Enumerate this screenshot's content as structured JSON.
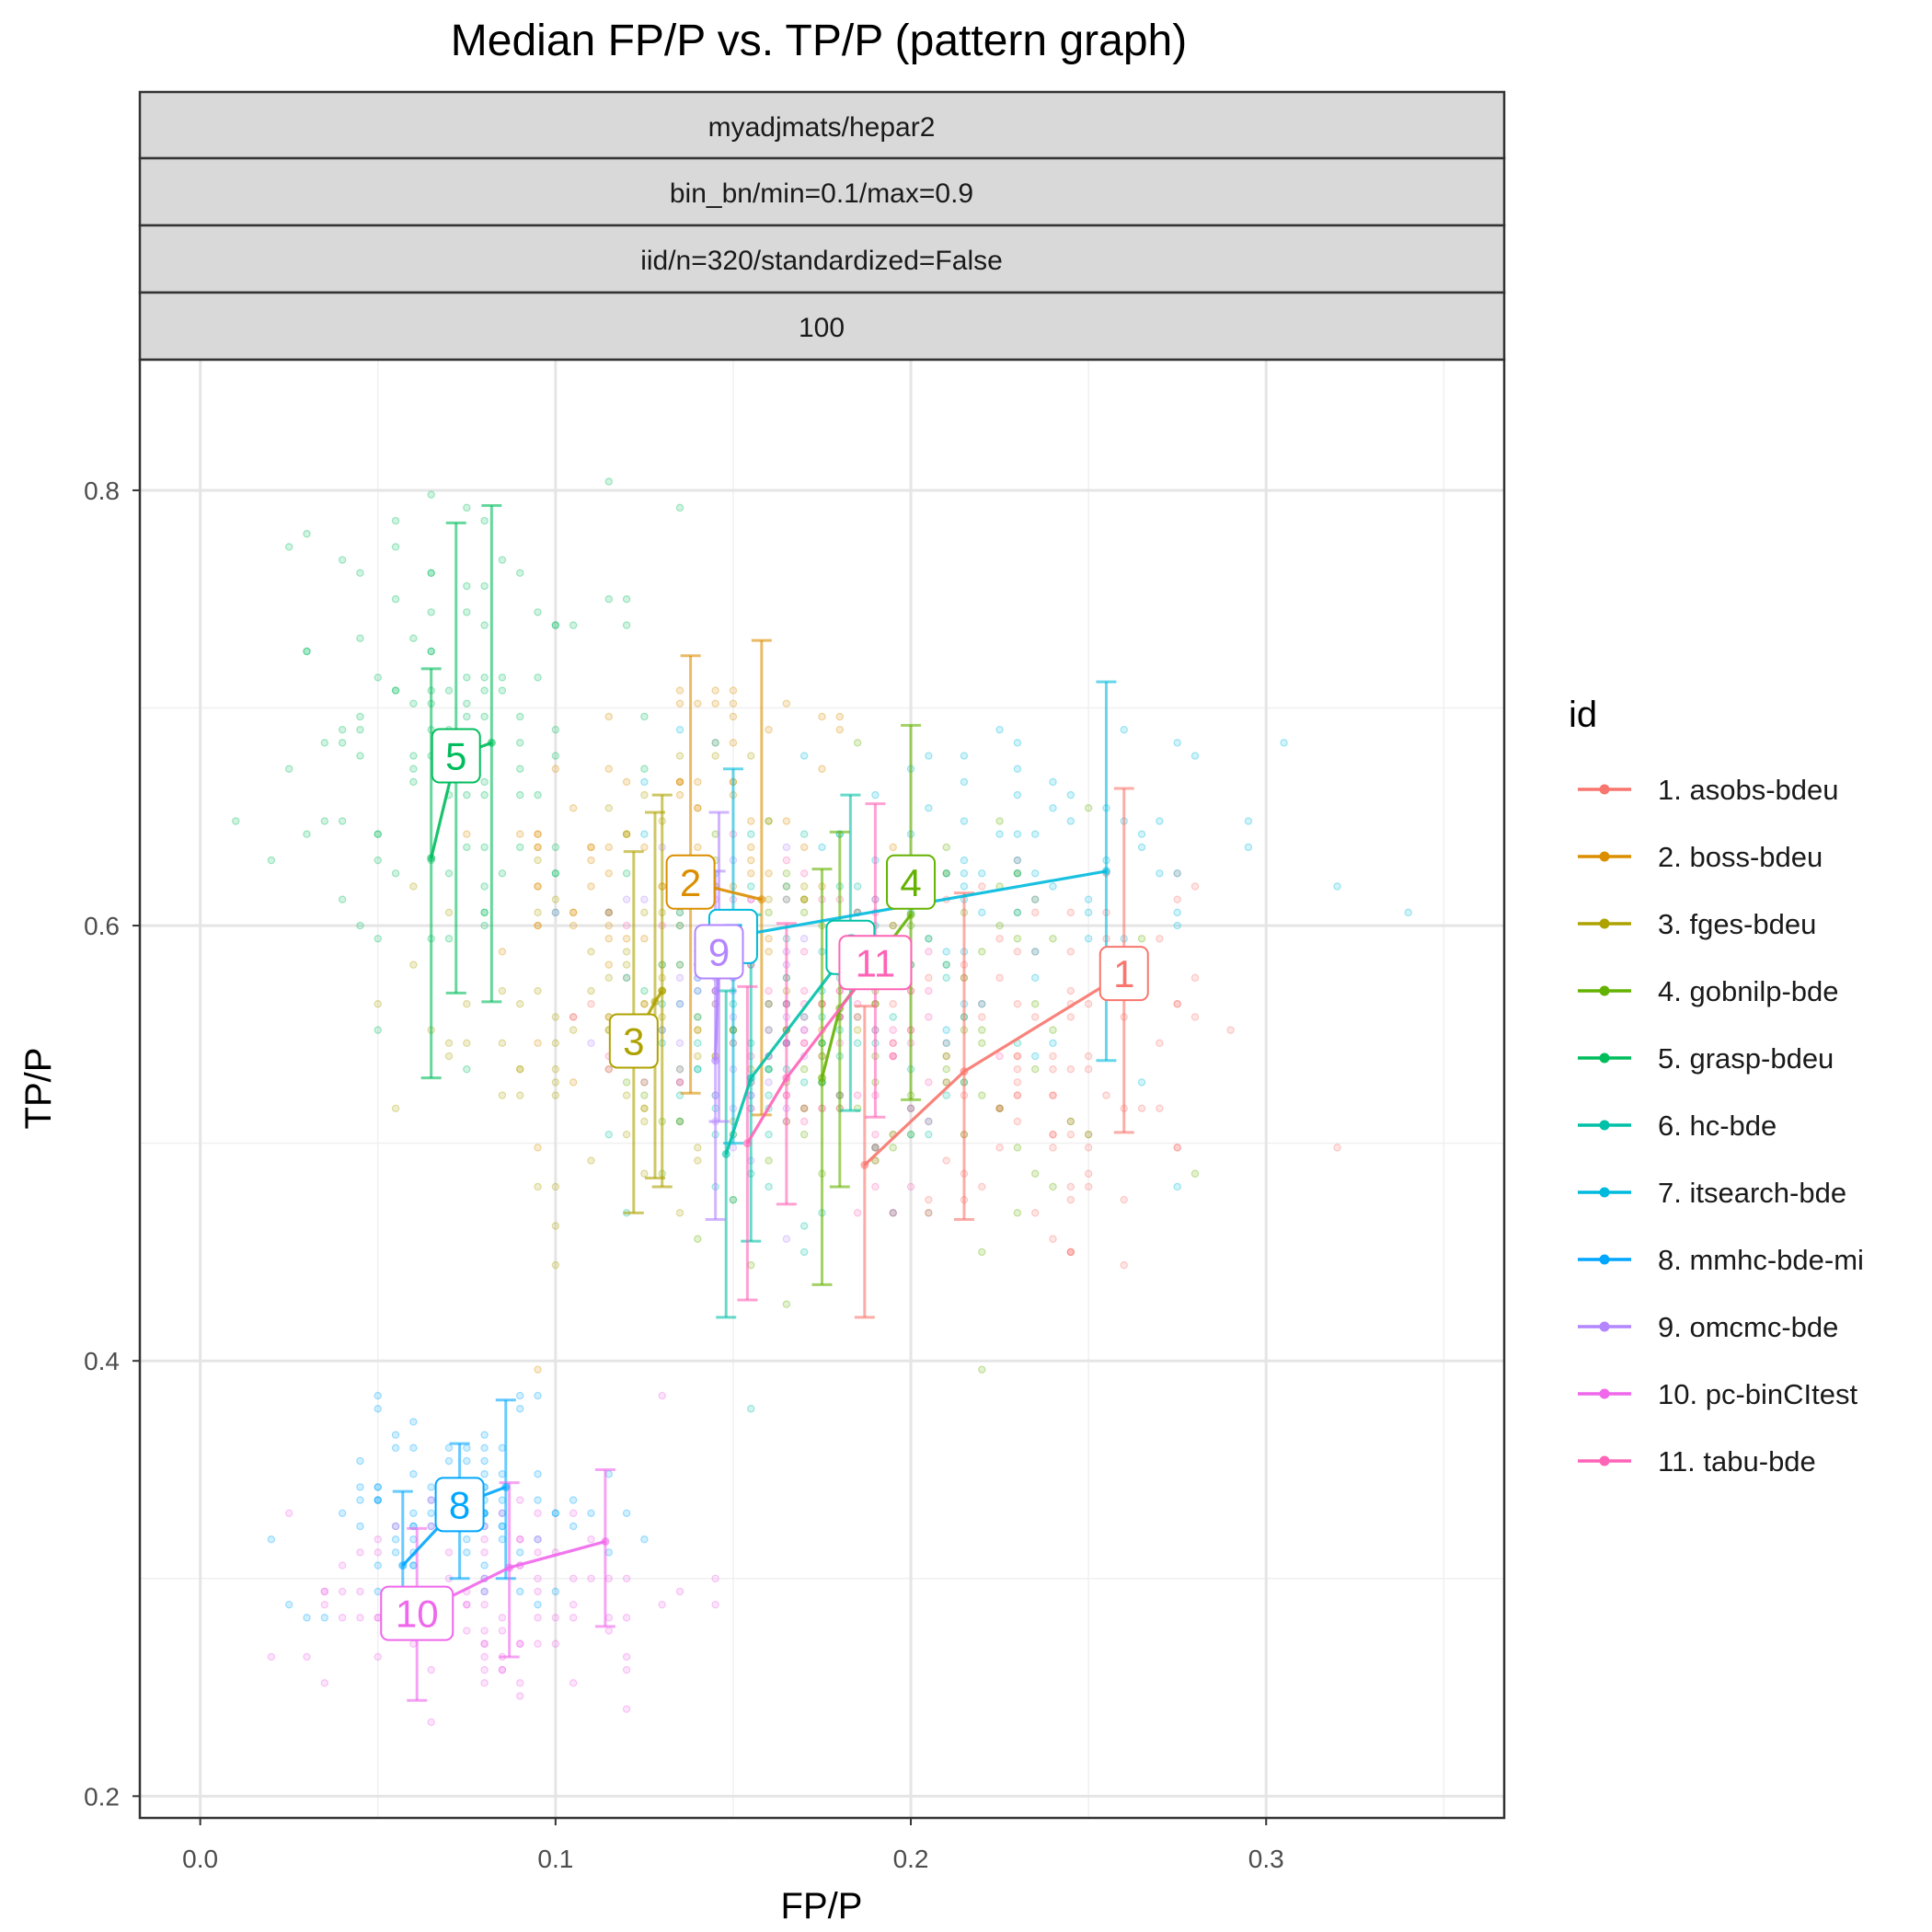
{
  "chart_data": {
    "type": "line",
    "title": "Median FP/P vs. TP/P (pattern graph)",
    "xlabel": "FP/P",
    "ylabel": "TP/P",
    "xlim": [
      -0.017,
      0.367
    ],
    "ylim": [
      0.19,
      0.86
    ],
    "x_ticks": [
      0.0,
      0.1,
      0.2,
      0.3
    ],
    "x_tick_labels": [
      "0.0",
      "0.1",
      "0.2",
      "0.3"
    ],
    "y_ticks": [
      0.2,
      0.4,
      0.6,
      0.8
    ],
    "y_tick_labels": [
      "0.2",
      "0.4",
      "0.6",
      "0.8"
    ],
    "grid": true,
    "facet_strips": [
      "myadjmats/hepar2",
      "bin_bn/min=0.1/max=0.9",
      "iid/n=320/standardized=False",
      "100"
    ],
    "legend": {
      "title": "id",
      "position": "right"
    },
    "series": [
      {
        "name": "1. asobs-bdeu",
        "color": "#F8766D",
        "label": "1",
        "label_at": [
          0.26,
          0.578
        ],
        "points": [
          {
            "x": 0.187,
            "y": 0.49,
            "ylo": 0.42,
            "yhi": 0.563
          },
          {
            "x": 0.215,
            "y": 0.533,
            "ylo": 0.465,
            "yhi": 0.615
          },
          {
            "x": 0.26,
            "y": 0.578,
            "ylo": 0.505,
            "yhi": 0.663
          }
        ],
        "cloud": {
          "cx": 0.235,
          "cy": 0.54,
          "sx": 0.035,
          "sy": 0.06,
          "n": 110
        }
      },
      {
        "name": "2. boss-bdeu",
        "color": "#DB8E00",
        "label": "2",
        "label_at": [
          0.138,
          0.62
        ],
        "points": [
          {
            "x": 0.138,
            "y": 0.62,
            "ylo": 0.523,
            "yhi": 0.724
          },
          {
            "x": 0.158,
            "y": 0.612,
            "ylo": 0.513,
            "yhi": 0.731
          }
        ],
        "cloud": {
          "cx": 0.135,
          "cy": 0.625,
          "sx": 0.03,
          "sy": 0.06,
          "n": 110
        }
      },
      {
        "name": "3. fges-bdeu",
        "color": "#AEA200",
        "label": "3",
        "label_at": [
          0.122,
          0.547
        ],
        "points": [
          {
            "x": 0.122,
            "y": 0.547,
            "ylo": 0.468,
            "yhi": 0.634
          },
          {
            "x": 0.128,
            "y": 0.565,
            "ylo": 0.484,
            "yhi": 0.652
          },
          {
            "x": 0.13,
            "y": 0.57,
            "ylo": 0.48,
            "yhi": 0.66
          }
        ],
        "cloud": {
          "cx": 0.12,
          "cy": 0.56,
          "sx": 0.03,
          "sy": 0.055,
          "n": 100
        }
      },
      {
        "name": "4. gobnilp-bde",
        "color": "#64B200",
        "label": "4",
        "label_at": [
          0.2,
          0.62
        ],
        "points": [
          {
            "x": 0.175,
            "y": 0.53,
            "ylo": 0.435,
            "yhi": 0.626
          },
          {
            "x": 0.18,
            "y": 0.562,
            "ylo": 0.48,
            "yhi": 0.643
          },
          {
            "x": 0.2,
            "y": 0.605,
            "ylo": 0.52,
            "yhi": 0.692
          }
        ],
        "cloud": {
          "cx": 0.19,
          "cy": 0.55,
          "sx": 0.035,
          "sy": 0.06,
          "n": 110
        }
      },
      {
        "name": "5. grasp-bdeu",
        "color": "#00BD5C",
        "label": "5",
        "label_at": [
          0.072,
          0.678
        ],
        "points": [
          {
            "x": 0.065,
            "y": 0.631,
            "ylo": 0.53,
            "yhi": 0.718
          },
          {
            "x": 0.072,
            "y": 0.678,
            "ylo": 0.569,
            "yhi": 0.785
          },
          {
            "x": 0.082,
            "y": 0.684,
            "ylo": 0.565,
            "yhi": 0.793
          }
        ],
        "cloud": {
          "cx": 0.075,
          "cy": 0.685,
          "sx": 0.03,
          "sy": 0.06,
          "n": 110
        }
      },
      {
        "name": "6. hc-bde",
        "color": "#00C1A7",
        "label": "6",
        "label_at": [
          0.183,
          0.59
        ],
        "points": [
          {
            "x": 0.148,
            "y": 0.495,
            "ylo": 0.42,
            "yhi": 0.57
          },
          {
            "x": 0.155,
            "y": 0.53,
            "ylo": 0.455,
            "yhi": 0.605
          },
          {
            "x": 0.183,
            "y": 0.59,
            "ylo": 0.515,
            "yhi": 0.66
          }
        ],
        "cloud": {
          "cx": 0.165,
          "cy": 0.55,
          "sx": 0.025,
          "sy": 0.05,
          "n": 90
        }
      },
      {
        "name": "7. itsearch-bde",
        "color": "#00BADE",
        "label": "7",
        "label_at": [
          0.15,
          0.595
        ],
        "points": [
          {
            "x": 0.15,
            "y": 0.595,
            "ylo": 0.5,
            "yhi": 0.672
          },
          {
            "x": 0.255,
            "y": 0.625,
            "ylo": 0.538,
            "yhi": 0.712
          }
        ],
        "cloud": {
          "cx": 0.22,
          "cy": 0.615,
          "sx": 0.045,
          "sy": 0.05,
          "n": 90
        }
      },
      {
        "name": "8. mmhc-bde-mi",
        "color": "#00A6FF",
        "label": "8",
        "label_at": [
          0.073,
          0.334
        ],
        "points": [
          {
            "x": 0.057,
            "y": 0.306,
            "ylo": 0.272,
            "yhi": 0.34
          },
          {
            "x": 0.073,
            "y": 0.334,
            "ylo": 0.3,
            "yhi": 0.362
          },
          {
            "x": 0.086,
            "y": 0.342,
            "ylo": 0.3,
            "yhi": 0.382
          }
        ],
        "cloud": {
          "cx": 0.072,
          "cy": 0.33,
          "sx": 0.025,
          "sy": 0.025,
          "n": 90
        }
      },
      {
        "name": "9. omcmc-bde",
        "color": "#B385FF",
        "label": "9",
        "label_at": [
          0.146,
          0.588
        ],
        "points": [
          {
            "x": 0.146,
            "y": 0.588,
            "ylo": 0.51,
            "yhi": 0.652
          },
          {
            "x": 0.145,
            "y": 0.538,
            "ylo": 0.465,
            "yhi": 0.625
          }
        ],
        "cloud": {
          "cx": 0.148,
          "cy": 0.565,
          "sx": 0.02,
          "sy": 0.045,
          "n": 60
        }
      },
      {
        "name": "10. pc-binCItest",
        "color": "#EF67EB",
        "label": "10",
        "label_at": [
          0.061,
          0.284
        ],
        "points": [
          {
            "x": 0.061,
            "y": 0.284,
            "ylo": 0.244,
            "yhi": 0.323
          },
          {
            "x": 0.087,
            "y": 0.305,
            "ylo": 0.264,
            "yhi": 0.344
          },
          {
            "x": 0.114,
            "y": 0.317,
            "ylo": 0.278,
            "yhi": 0.35
          }
        ],
        "cloud": {
          "cx": 0.085,
          "cy": 0.292,
          "sx": 0.03,
          "sy": 0.03,
          "n": 90
        }
      },
      {
        "name": "11. tabu-bde",
        "color": "#FF63B6",
        "label": "11",
        "label_at": [
          0.19,
          0.583
        ],
        "points": [
          {
            "x": 0.154,
            "y": 0.5,
            "ylo": 0.428,
            "yhi": 0.572
          },
          {
            "x": 0.165,
            "y": 0.53,
            "ylo": 0.472,
            "yhi": 0.601
          },
          {
            "x": 0.19,
            "y": 0.583,
            "ylo": 0.512,
            "yhi": 0.656
          }
        ],
        "cloud": {
          "cx": 0.175,
          "cy": 0.55,
          "sx": 0.025,
          "sy": 0.05,
          "n": 80
        }
      }
    ]
  }
}
